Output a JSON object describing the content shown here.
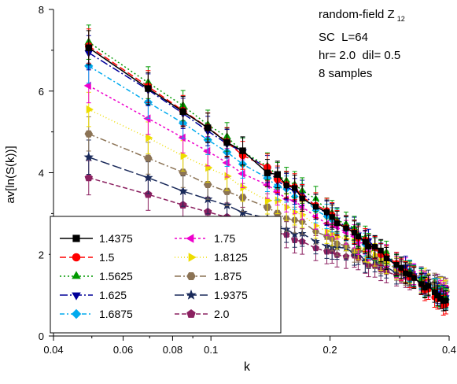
{
  "chart_data": {
    "type": "line",
    "xscale": "log",
    "xlim": [
      0.04,
      0.4
    ],
    "ylim": [
      0,
      8
    ],
    "xticks": [
      0.04,
      0.06,
      0.08,
      0.1,
      0.2,
      0.4
    ],
    "xtick_labels": [
      "0.04",
      "0.06",
      "0.08",
      "0.1",
      "0.2",
      "0.4"
    ],
    "yticks": [
      0,
      2,
      4,
      6,
      8
    ],
    "ytick_labels": [
      "0",
      "2",
      "4",
      "6",
      "8"
    ],
    "xlabel": "k",
    "ylabel": "av[ln(S(k))]",
    "grid": false,
    "legend_position": "bottom-left",
    "annotation": {
      "line1": "random-field Z",
      "line1_sub": "12",
      "line2": "SC  L=64",
      "line3": "hr= 2.0  dil= 0.5",
      "line4": "8 samples"
    },
    "x": [
      0.0491,
      0.0694,
      0.085,
      0.0982,
      0.1098,
      0.1203,
      0.1389,
      0.1473,
      0.1552,
      0.1628,
      0.1701,
      0.1841,
      0.1963,
      0.2024,
      0.2083,
      0.2196,
      0.2304,
      0.2356,
      0.2455,
      0.2503,
      0.2597,
      0.2688,
      0.2777,
      0.2945,
      0.3026,
      0.3105,
      0.3182,
      0.3258,
      0.3402,
      0.3473,
      0.3542,
      0.3676,
      0.3741,
      0.3806,
      0.3868,
      0.3927
    ],
    "series": [
      {
        "name": "1.4375",
        "color": "#000000",
        "marker": "square",
        "dash": "solid",
        "y0": 7.05,
        "y1": 0.82
      },
      {
        "name": "1.5",
        "color": "#ff0000",
        "marker": "circle",
        "dash": "8,4",
        "y0": 7.1,
        "y1": 0.78
      },
      {
        "name": "1.5625",
        "color": "#009900",
        "marker": "triangle-up",
        "dash": "2,3",
        "y0": 7.2,
        "y1": 0.85
      },
      {
        "name": "1.625",
        "color": "#000099",
        "marker": "triangle-down",
        "dash": "10,3,2,3",
        "y0": 6.95,
        "y1": 0.9
      },
      {
        "name": "1.6875",
        "color": "#00aaee",
        "marker": "diamond",
        "dash": "6,3,2,3",
        "y0": 6.6,
        "y1": 0.95
      },
      {
        "name": "1.75",
        "color": "#ee00cc",
        "marker": "triangle-left",
        "dash": "3,3",
        "y0": 6.12,
        "y1": 1.0
      },
      {
        "name": "1.8125",
        "color": "#eedd00",
        "marker": "triangle-right",
        "dash": "1,3",
        "y0": 5.55,
        "y1": 1.05
      },
      {
        "name": "1.875",
        "color": "#8b7355",
        "marker": "hexagon",
        "dash": "8,3,2,3",
        "y0": 4.95,
        "y1": 1.1
      },
      {
        "name": "1.9375",
        "color": "#1a2a5a",
        "marker": "star",
        "dash": "12,4",
        "y0": 4.38,
        "y1": 1.12
      },
      {
        "name": "2.0",
        "color": "#8b2060",
        "marker": "pentagon",
        "dash": "6,3",
        "y0": 3.9,
        "y1": 1.16
      }
    ]
  }
}
